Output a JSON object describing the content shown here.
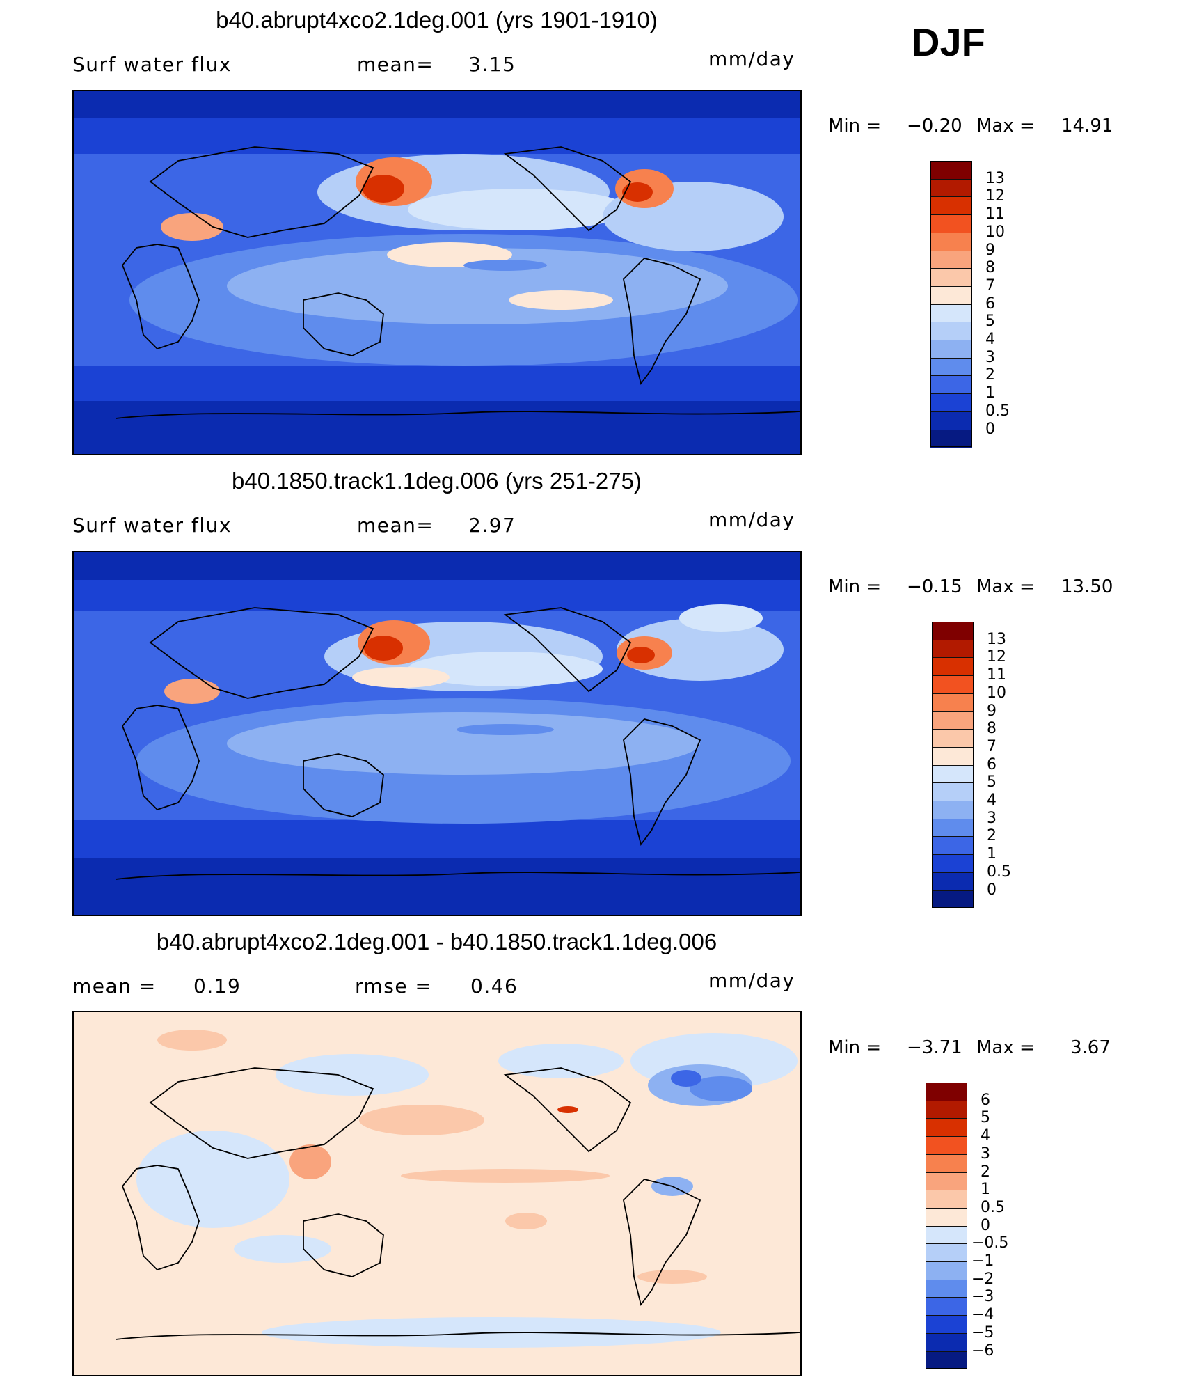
{
  "season": "DJF",
  "panels": [
    {
      "id": "p1",
      "title": "b40.abrupt4xco2.1deg.001 (yrs 1901-1910)",
      "left_label": "Surf  water  flux",
      "mid_label": "mean=",
      "mid_value": "3.15",
      "units": "mm/day",
      "min_label": "Min  =",
      "min_value": "−0.20",
      "max_label": "Max  =",
      "max_value": "14.91",
      "colorbar": {
        "labels": [
          "13",
          "12",
          "11",
          "10",
          "9",
          "8",
          "7",
          "6",
          "5",
          "4",
          "3",
          "2",
          "1",
          "0.5",
          "0"
        ],
        "colors": [
          "#7f0000",
          "#b21a00",
          "#d83000",
          "#f25220",
          "#f7814e",
          "#f9a47d",
          "#fbc8aa",
          "#fde8d7",
          "#d5e6fb",
          "#b5cff8",
          "#8db1f2",
          "#5f8ced",
          "#3c66e6",
          "#1b42d4",
          "#0b2bb0",
          "#061a82"
        ]
      },
      "chart_data": {
        "type": "heatmap",
        "title": "b40.abrupt4xco2.1deg.001 (yrs 1901-1910)",
        "variable": "Surf water flux",
        "units": "mm/day",
        "mean": 3.15,
        "min": -0.2,
        "max": 14.91,
        "levels": [
          0,
          0.5,
          1,
          2,
          3,
          4,
          5,
          6,
          7,
          8,
          9,
          10,
          11,
          12,
          13
        ]
      }
    },
    {
      "id": "p2",
      "title": "b40.1850.track1.1deg.006 (yrs 251-275)",
      "left_label": "Surf  water  flux",
      "mid_label": "mean=",
      "mid_value": "2.97",
      "units": "mm/day",
      "min_label": "Min  =",
      "min_value": "−0.15",
      "max_label": "Max  =",
      "max_value": "13.50",
      "colorbar": {
        "labels": [
          "13",
          "12",
          "11",
          "10",
          "9",
          "8",
          "7",
          "6",
          "5",
          "4",
          "3",
          "2",
          "1",
          "0.5",
          "0"
        ],
        "colors": [
          "#7f0000",
          "#b21a00",
          "#d83000",
          "#f25220",
          "#f7814e",
          "#f9a47d",
          "#fbc8aa",
          "#fde8d7",
          "#d5e6fb",
          "#b5cff8",
          "#8db1f2",
          "#5f8ced",
          "#3c66e6",
          "#1b42d4",
          "#0b2bb0",
          "#061a82"
        ]
      },
      "chart_data": {
        "type": "heatmap",
        "title": "b40.1850.track1.1deg.006 (yrs 251-275)",
        "variable": "Surf water flux",
        "units": "mm/day",
        "mean": 2.97,
        "min": -0.15,
        "max": 13.5,
        "levels": [
          0,
          0.5,
          1,
          2,
          3,
          4,
          5,
          6,
          7,
          8,
          9,
          10,
          11,
          12,
          13
        ]
      }
    },
    {
      "id": "p3",
      "title": "b40.abrupt4xco2.1deg.001 - b40.1850.track1.1deg.006",
      "left_label": "mean  =",
      "left_value": "0.19",
      "mid_label": "rmse  =",
      "mid_value": "0.46",
      "units": "mm/day",
      "min_label": "Min  =",
      "min_value": "−3.71",
      "max_label": "Max  =",
      "max_value": "3.67",
      "colorbar": {
        "labels": [
          "6",
          "5",
          "4",
          "3",
          "2",
          "1",
          "0.5",
          "0",
          "−0.5",
          "−1",
          "−2",
          "−3",
          "−4",
          "−5",
          "−6"
        ],
        "colors": [
          "#7f0000",
          "#b21a00",
          "#d83000",
          "#f25220",
          "#f7814e",
          "#f9a47d",
          "#fbc8aa",
          "#fde8d7",
          "#d5e6fb",
          "#b5cff8",
          "#8db1f2",
          "#5f8ced",
          "#3c66e6",
          "#1b42d4",
          "#0b2bb0",
          "#061a82"
        ]
      },
      "chart_data": {
        "type": "heatmap",
        "title": "b40.abrupt4xco2.1deg.001 - b40.1850.track1.1deg.006",
        "units": "mm/day",
        "mean": 0.19,
        "rmse": 0.46,
        "min": -3.71,
        "max": 3.67,
        "levels": [
          -6,
          -5,
          -4,
          -3,
          -2,
          -1,
          -0.5,
          0,
          0.5,
          1,
          2,
          3,
          4,
          5,
          6
        ]
      }
    }
  ]
}
